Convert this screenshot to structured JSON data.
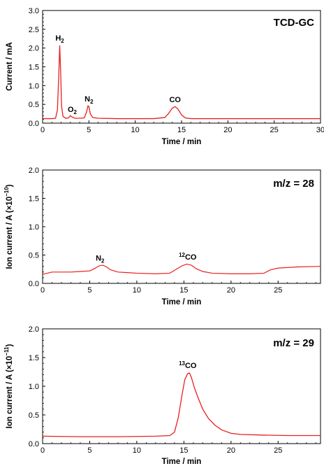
{
  "chart_data": [
    {
      "type": "line",
      "title": "TCD-GC",
      "xlabel": "Time / min",
      "ylabel": "Current / mA",
      "xlim": [
        0,
        30
      ],
      "ylim": [
        0,
        3.0
      ],
      "xticks": [
        "0",
        "5",
        "10",
        "15",
        "20",
        "25",
        "30"
      ],
      "xtick_values": [
        0,
        5,
        10,
        15,
        20,
        25,
        30
      ],
      "yticks": [
        "0.0",
        "0.5",
        "1.0",
        "1.5",
        "2.0",
        "2.5",
        "3.0"
      ],
      "ytick_values": [
        0,
        0.5,
        1.0,
        1.5,
        2.0,
        2.5,
        3.0
      ],
      "line_color": "#e8201f",
      "series": [
        {
          "x": [
            0.0,
            0.5,
            1.0,
            1.4,
            1.6,
            1.75,
            1.85,
            1.95,
            2.05,
            2.2,
            2.5,
            2.8,
            3.0,
            3.2,
            3.5,
            4.0,
            4.5,
            4.75,
            4.9,
            5.0,
            5.15,
            5.4,
            6.0,
            8.0,
            10.0,
            12.0,
            13.2,
            13.6,
            14.0,
            14.3,
            14.6,
            15.0,
            15.4,
            16.0,
            18.0,
            20.0,
            25.0,
            30.0
          ],
          "y": [
            0.12,
            0.12,
            0.12,
            0.13,
            0.35,
            1.3,
            2.07,
            1.35,
            0.45,
            0.18,
            0.13,
            0.14,
            0.2,
            0.16,
            0.13,
            0.13,
            0.14,
            0.3,
            0.46,
            0.44,
            0.25,
            0.15,
            0.13,
            0.12,
            0.12,
            0.12,
            0.15,
            0.26,
            0.4,
            0.44,
            0.38,
            0.22,
            0.14,
            0.12,
            0.12,
            0.12,
            0.12,
            0.12
          ]
        }
      ],
      "annotations": [
        {
          "base": "H",
          "sub": "2",
          "sup": "",
          "x": 1.85,
          "y": 2.2
        },
        {
          "base": "O",
          "sub": "2",
          "sup": "",
          "x": 3.2,
          "y": 0.3
        },
        {
          "base": "N",
          "sub": "2",
          "sup": "",
          "x": 5.0,
          "y": 0.58
        },
        {
          "base": "CO",
          "sub": "",
          "sup": "",
          "x": 14.3,
          "y": 0.56
        }
      ]
    },
    {
      "type": "line",
      "title": "m/z = 28",
      "xlabel": "Time / min",
      "ylabel_main": "Ion current / A (×10",
      "ylabel_exp": "−10",
      "ylabel_end": ")",
      "xlim": [
        0,
        29.5
      ],
      "ylim": [
        0,
        2.0
      ],
      "xticks": [
        "0",
        "5",
        "10",
        "15",
        "20",
        "25"
      ],
      "xtick_values": [
        0,
        5,
        10,
        15,
        20,
        25
      ],
      "yticks": [
        "0.0",
        "0.5",
        "1.0",
        "1.5",
        "2.0"
      ],
      "ytick_values": [
        0,
        0.5,
        1.0,
        1.5,
        2.0
      ],
      "line_color": "#e8201f",
      "series": [
        {
          "x": [
            0.0,
            1.0,
            2.0,
            3.0,
            4.0,
            5.0,
            5.5,
            6.0,
            6.4,
            6.8,
            7.2,
            8.0,
            9.0,
            10.0,
            12.0,
            13.5,
            14.2,
            14.8,
            15.3,
            15.8,
            16.3,
            17.0,
            18.0,
            20.0,
            22.0,
            23.5,
            24.2,
            25.0,
            27.0,
            29.5
          ],
          "y": [
            0.16,
            0.2,
            0.2,
            0.2,
            0.21,
            0.22,
            0.26,
            0.31,
            0.32,
            0.29,
            0.24,
            0.2,
            0.19,
            0.18,
            0.17,
            0.18,
            0.25,
            0.31,
            0.34,
            0.32,
            0.26,
            0.21,
            0.18,
            0.17,
            0.17,
            0.18,
            0.24,
            0.27,
            0.29,
            0.3
          ]
        }
      ],
      "annotations": [
        {
          "base": "N",
          "sub": "2",
          "sup": "",
          "x": 6.1,
          "y": 0.4
        },
        {
          "base": "CO",
          "sub": "",
          "sup": "12",
          "x": 15.4,
          "y": 0.42
        }
      ]
    },
    {
      "type": "line",
      "title": "m/z = 29",
      "xlabel": "Time / min",
      "ylabel_main": "Ion current / A (×10",
      "ylabel_exp": "−11",
      "ylabel_end": ")",
      "xlim": [
        0,
        29.5
      ],
      "ylim": [
        0,
        2.0
      ],
      "xticks": [
        "0",
        "5",
        "10",
        "15",
        "20",
        "25"
      ],
      "xtick_values": [
        0,
        5,
        10,
        15,
        20,
        25
      ],
      "yticks": [
        "0.0",
        "0.5",
        "1.0",
        "1.5",
        "2.0"
      ],
      "ytick_values": [
        0,
        0.5,
        1.0,
        1.5,
        2.0
      ],
      "line_color": "#e8201f",
      "series": [
        {
          "x": [
            0.0,
            4.0,
            8.0,
            12.0,
            13.5,
            14.0,
            14.4,
            14.8,
            15.1,
            15.4,
            15.6,
            15.8,
            16.1,
            16.5,
            17.0,
            17.6,
            18.3,
            19.0,
            20.0,
            21.0,
            23.0,
            26.0,
            29.5
          ],
          "y": [
            0.13,
            0.12,
            0.12,
            0.13,
            0.14,
            0.2,
            0.45,
            0.85,
            1.12,
            1.22,
            1.23,
            1.15,
            0.98,
            0.8,
            0.6,
            0.44,
            0.32,
            0.24,
            0.18,
            0.16,
            0.15,
            0.14,
            0.14
          ]
        }
      ],
      "annotations": [
        {
          "base": "CO",
          "sub": "",
          "sup": "13",
          "x": 15.4,
          "y": 1.32
        }
      ]
    }
  ]
}
